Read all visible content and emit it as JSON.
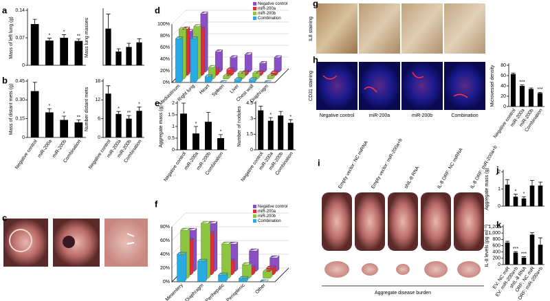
{
  "panel_labels": [
    "a",
    "b",
    "c",
    "d",
    "e",
    "f",
    "g",
    "h",
    "i",
    "j",
    "k"
  ],
  "images": {
    "g": {
      "axis_label": "IL8 staining"
    },
    "h": {
      "axis_label": "CD31 staining",
      "captions": [
        "Negative control",
        "miR-200a",
        "miR-200b",
        "Combination"
      ]
    },
    "i": {
      "captions": [
        "Empty vector: NC miRNA",
        "Empty vector: miR-200a+b",
        "shIL-8 RNA",
        "IL-8 ORF: NC miRNA",
        "IL-8 ORF: miR-200a+b"
      ],
      "footer": "Aggregate disease burden"
    }
  },
  "chart_data": [
    {
      "type": "bar",
      "ylabel": "Mass of left lung (g)",
      "categories": [
        null,
        null,
        null,
        null
      ],
      "values": [
        0.105,
        0.063,
        0.07,
        0.062
      ],
      "errors": [
        0.012,
        0.006,
        0.008,
        0.005
      ],
      "annotations": [
        null,
        "*",
        "*",
        "**"
      ],
      "ylim": [
        0,
        0.14
      ],
      "yticks": [
        0,
        0.07,
        0.14
      ],
      "color": "#000000"
    },
    {
      "type": "bar",
      "ylabel": "Mass lung masses",
      "categories": [
        null,
        null,
        null,
        null
      ],
      "values": [
        4.0,
        1.5,
        2.0,
        2.5
      ],
      "errors": [
        1.6,
        0.3,
        0.4,
        0.4
      ],
      "annotations": [
        null,
        null,
        null,
        null
      ],
      "ylim": [
        0,
        6
      ],
      "yticks": [],
      "color": "#000000"
    },
    {
      "type": "bar",
      "ylabel": "Mass of distant mets (g)",
      "categories": [
        "Negative control",
        "miR-200a",
        "miR-200b",
        "Combination"
      ],
      "values": [
        0.37,
        0.2,
        0.14,
        0.12
      ],
      "errors": [
        0.07,
        0.03,
        0.03,
        0.02
      ],
      "annotations": [
        null,
        "*",
        "*",
        "**"
      ],
      "ylim": [
        0,
        0.45
      ],
      "yticks": [
        0,
        0.15,
        {
          "value": 0.3,
          "label": "0.30"
        },
        0.45
      ],
      "color": "#000000"
    },
    {
      "type": "bar",
      "ylabel": "Number distant mets",
      "categories": [
        "Negative control",
        "miR-200a",
        "miR-200b",
        "Combination"
      ],
      "values": [
        14,
        7.5,
        6,
        8.5
      ],
      "errors": [
        2.5,
        0.8,
        1.0,
        1.2
      ],
      "annotations": [
        null,
        "*",
        "**",
        "*"
      ],
      "ylim": [
        0,
        18
      ],
      "yticks": [
        0,
        6,
        12,
        18
      ],
      "color": "#000000"
    },
    {
      "type": "bar3d",
      "categories": [
        "Mediastinum",
        "Right lung",
        "Heart",
        "Spleen",
        "Liver",
        "Chest wall",
        "Diaphragm"
      ],
      "series": [
        {
          "name": "Negative control",
          "color": "#8a4fc4",
          "values": [
            70,
            100,
            35,
            25,
            30,
            15,
            25
          ]
        },
        {
          "name": "miR-200a",
          "color": "#e03030",
          "values": [
            80,
            80,
            10,
            10,
            5,
            5,
            5
          ]
        },
        {
          "name": "miR-200b",
          "color": "#8cc63f",
          "values": [
            85,
            90,
            20,
            5,
            10,
            10,
            5
          ]
        },
        {
          "name": "Combination",
          "color": "#29abe2",
          "values": [
            75,
            75,
            10,
            0,
            5,
            5,
            0
          ]
        }
      ],
      "ylim": [
        0,
        100
      ],
      "yticks": [
        {
          "value": 0,
          "label": "0%"
        },
        {
          "value": 20,
          "label": "20%"
        },
        {
          "value": 40,
          "label": "40%"
        },
        {
          "value": 60,
          "label": "60%"
        },
        {
          "value": 80,
          "label": "80%"
        },
        {
          "value": 100,
          "label": "100%"
        }
      ],
      "grid": true
    },
    {
      "type": "bar",
      "ylabel": "Aggregate mass (g)",
      "categories": [
        "Negative control",
        "miR-200a",
        "miR-200b",
        "Combination"
      ],
      "values": [
        1.55,
        0.7,
        1.2,
        0.5
      ],
      "errors": [
        0.45,
        0.3,
        0.4,
        0.15
      ],
      "annotations": [
        null,
        "*",
        null,
        "*"
      ],
      "ylim": [
        0,
        2
      ],
      "yticks": [
        0,
        0.5,
        1,
        1.5,
        2
      ],
      "color": "#000000"
    },
    {
      "type": "bar",
      "ylabel": "Number of nodules",
      "categories": [
        "Negative control",
        "miR-200a",
        "miR-200b",
        "Combination"
      ],
      "values": [
        3.8,
        2.8,
        3.3,
        2.6
      ],
      "errors": [
        0.4,
        0.3,
        0.4,
        0.3
      ],
      "annotations": [
        null,
        "*",
        null,
        "*"
      ],
      "ylim": [
        0,
        4.5
      ],
      "yticks": [
        0,
        1.5,
        3,
        4.5
      ],
      "color": "#000000"
    },
    {
      "type": "bar3d",
      "categories": [
        "Mesentery",
        "Diaphragm",
        "Perihepatic",
        "Perisplenic",
        "Other"
      ],
      "series": [
        {
          "name": "Negative control",
          "color": "#8a4fc4",
          "values": [
            60,
            70,
            40,
            30,
            20
          ]
        },
        {
          "name": "miR-200a",
          "color": "#e03030",
          "values": [
            50,
            60,
            20,
            10,
            10
          ]
        },
        {
          "name": "miR-200b",
          "color": "#8cc63f",
          "values": [
            70,
            80,
            50,
            20,
            10
          ]
        },
        {
          "name": "Combination",
          "color": "#29abe2",
          "values": [
            40,
            30,
            10,
            5,
            0
          ]
        }
      ],
      "ylim": [
        0,
        80
      ],
      "yticks": [
        {
          "value": 0,
          "label": "0%"
        },
        {
          "value": 20,
          "label": "20%"
        },
        {
          "value": 40,
          "label": "40%"
        },
        {
          "value": 60,
          "label": "60%"
        },
        {
          "value": 80,
          "label": "80%"
        }
      ],
      "grid": true
    },
    {
      "type": "bar",
      "ylabel": "Microvessel density",
      "categories": [
        "Negative control",
        "miR-200a",
        "miR-200b",
        "Combination"
      ],
      "values": [
        63,
        40,
        34,
        26
      ],
      "errors": [
        2,
        2,
        2,
        1.5
      ],
      "annotations": [
        null,
        "***",
        null,
        "***"
      ],
      "ylim": [
        0,
        80
      ],
      "yticks": [
        0,
        20,
        40,
        60,
        80
      ],
      "color": "#000000"
    },
    {
      "type": "bar",
      "ylabel": "Aggregate mass (g)",
      "categories": [
        null,
        null,
        null,
        null,
        null
      ],
      "values": [
        1.25,
        0.55,
        0.45,
        1.2,
        1.2
      ],
      "errors": [
        0.3,
        0.15,
        0.1,
        0.3,
        0.2
      ],
      "annotations": [
        null,
        "*",
        "*",
        null,
        null
      ],
      "ylim": [
        0,
        2
      ],
      "yticks": [
        0,
        1,
        2
      ],
      "color": "#000000"
    },
    {
      "type": "bar",
      "ylabel": "IL-8 levels (pg ml⁻¹)",
      "categories": [
        "EV: NC miR",
        "EV: miR-200a+b",
        "shIL-8 RNA",
        "ORF: NC miR",
        "ORF: miR-200a+b"
      ],
      "values": [
        700,
        380,
        220,
        950,
        630
      ],
      "errors": [
        40,
        30,
        30,
        60,
        220
      ],
      "annotations": [
        null,
        "***",
        "***",
        null,
        null
      ],
      "ylim": [
        0,
        1200
      ],
      "yticks": [
        0,
        200,
        400,
        600,
        800,
        {
          "value": 1000,
          "label": "1,000"
        },
        {
          "value": 1200,
          "label": "1,200"
        }
      ],
      "color": "#000000"
    }
  ]
}
